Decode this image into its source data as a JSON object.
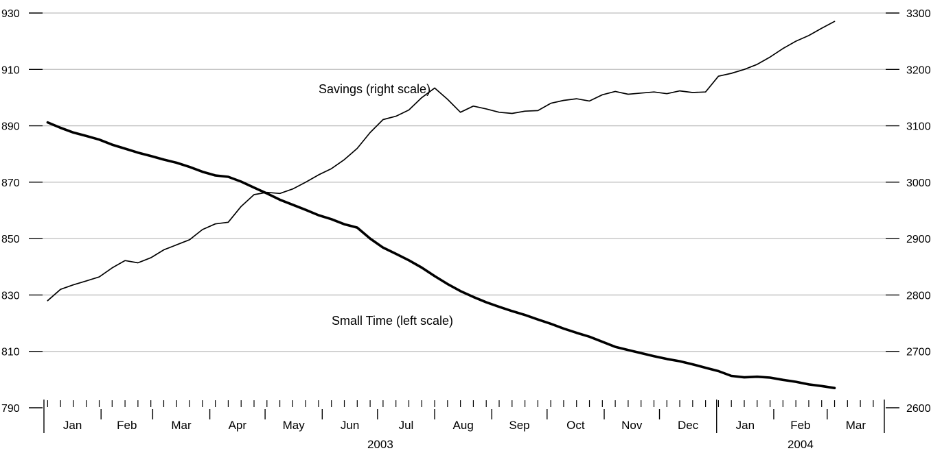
{
  "chart_data": {
    "type": "line",
    "title": "",
    "xlabel": "",
    "x_axis": {
      "months": [
        "Jan",
        "Feb",
        "Mar",
        "Apr",
        "May",
        "Jun",
        "Jul",
        "Aug",
        "Sep",
        "Oct",
        "Nov",
        "Dec",
        "Jan",
        "Feb",
        "Mar"
      ],
      "years": [
        {
          "label": "2003"
        },
        {
          "label": "2004"
        }
      ],
      "range": [
        "2003-01-01",
        "2004-03-31"
      ]
    },
    "left_axis": {
      "ticks": [
        790,
        810,
        830,
        850,
        870,
        890,
        910,
        930
      ],
      "ylim": [
        790,
        930
      ]
    },
    "right_axis": {
      "ticks": [
        2600,
        2700,
        2800,
        2900,
        3000,
        3100,
        3200,
        3300
      ],
      "ylim": [
        2600,
        3300
      ]
    },
    "grid": true,
    "annotations": [
      {
        "text": "Savings (right scale)",
        "series": "savings"
      },
      {
        "text": "Small Time (left scale)",
        "series": "small_time"
      }
    ],
    "series": [
      {
        "id": "small_time",
        "axis": "left",
        "color": "#000000",
        "x": [
          "2003-01-03",
          "2003-01-10",
          "2003-01-17",
          "2003-01-24",
          "2003-01-31",
          "2003-02-07",
          "2003-02-14",
          "2003-02-21",
          "2003-02-28",
          "2003-03-07",
          "2003-03-14",
          "2003-03-21",
          "2003-03-28",
          "2003-04-04",
          "2003-04-11",
          "2003-04-18",
          "2003-04-25",
          "2003-05-02",
          "2003-05-09",
          "2003-05-16",
          "2003-05-23",
          "2003-05-30",
          "2003-06-06",
          "2003-06-13",
          "2003-06-20",
          "2003-06-27",
          "2003-07-04",
          "2003-07-11",
          "2003-07-18",
          "2003-07-25",
          "2003-08-01",
          "2003-08-08",
          "2003-08-15",
          "2003-08-22",
          "2003-08-29",
          "2003-09-05",
          "2003-09-12",
          "2003-09-19",
          "2003-09-26",
          "2003-10-03",
          "2003-10-10",
          "2003-10-17",
          "2003-10-24",
          "2003-10-31",
          "2003-11-07",
          "2003-11-14",
          "2003-11-21",
          "2003-11-28",
          "2003-12-05",
          "2003-12-12",
          "2003-12-19",
          "2003-12-26",
          "2004-01-02",
          "2004-01-09",
          "2004-01-16",
          "2004-01-23",
          "2004-01-30",
          "2004-02-06",
          "2004-02-13",
          "2004-02-20",
          "2004-02-27",
          "2004-03-05"
        ],
        "values": [
          891.2,
          889.3,
          887.6,
          886.4,
          885.1,
          883.3,
          881.9,
          880.5,
          879.3,
          878.0,
          876.9,
          875.4,
          873.7,
          872.4,
          871.9,
          870.2,
          868.1,
          866.0,
          863.8,
          862.0,
          860.2,
          858.3,
          856.9,
          855.1,
          853.9,
          850.0,
          846.8,
          844.6,
          842.3,
          839.7,
          836.7,
          833.9,
          831.4,
          829.3,
          827.4,
          825.8,
          824.3,
          822.9,
          821.3,
          819.8,
          818.1,
          816.6,
          815.2,
          813.4,
          811.6,
          810.5,
          809.4,
          808.3,
          807.3,
          806.5,
          805.4,
          804.2,
          803.0,
          801.3,
          800.8,
          801.0,
          800.7,
          799.9,
          799.2,
          798.3,
          797.7,
          797.0
        ]
      },
      {
        "id": "savings",
        "axis": "right",
        "color": "#000000",
        "x": [
          "2003-01-03",
          "2003-01-10",
          "2003-01-17",
          "2003-01-24",
          "2003-01-31",
          "2003-02-07",
          "2003-02-14",
          "2003-02-21",
          "2003-02-28",
          "2003-03-07",
          "2003-03-14",
          "2003-03-21",
          "2003-03-28",
          "2003-04-04",
          "2003-04-11",
          "2003-04-18",
          "2003-04-25",
          "2003-05-02",
          "2003-05-09",
          "2003-05-16",
          "2003-05-23",
          "2003-05-30",
          "2003-06-06",
          "2003-06-13",
          "2003-06-20",
          "2003-06-27",
          "2003-07-04",
          "2003-07-11",
          "2003-07-18",
          "2003-07-25",
          "2003-08-01",
          "2003-08-08",
          "2003-08-15",
          "2003-08-22",
          "2003-08-29",
          "2003-09-05",
          "2003-09-12",
          "2003-09-19",
          "2003-09-26",
          "2003-10-03",
          "2003-10-10",
          "2003-10-17",
          "2003-10-24",
          "2003-10-31",
          "2003-11-07",
          "2003-11-14",
          "2003-11-21",
          "2003-11-28",
          "2003-12-05",
          "2003-12-12",
          "2003-12-19",
          "2003-12-26",
          "2004-01-02",
          "2004-01-09",
          "2004-01-16",
          "2004-01-23",
          "2004-01-30",
          "2004-02-06",
          "2004-02-13",
          "2004-02-20",
          "2004-02-27",
          "2004-03-05"
        ],
        "values": [
          2790,
          2810,
          2818,
          2825,
          2832,
          2848,
          2861,
          2857,
          2866,
          2880,
          2889,
          2898,
          2916,
          2926,
          2929,
          2957,
          2978,
          2982,
          2980,
          2988,
          3000,
          3013,
          3024,
          3040,
          3060,
          3088,
          3111,
          3117,
          3128,
          3150,
          3167,
          3147,
          3124,
          3135,
          3130,
          3124,
          3122,
          3126,
          3127,
          3140,
          3145,
          3148,
          3144,
          3155,
          3161,
          3156,
          3158,
          3160,
          3157,
          3162,
          3159,
          3160,
          3188,
          3193,
          3200,
          3209,
          3222,
          3237,
          3250,
          3260,
          3273,
          3285
        ]
      }
    ]
  }
}
